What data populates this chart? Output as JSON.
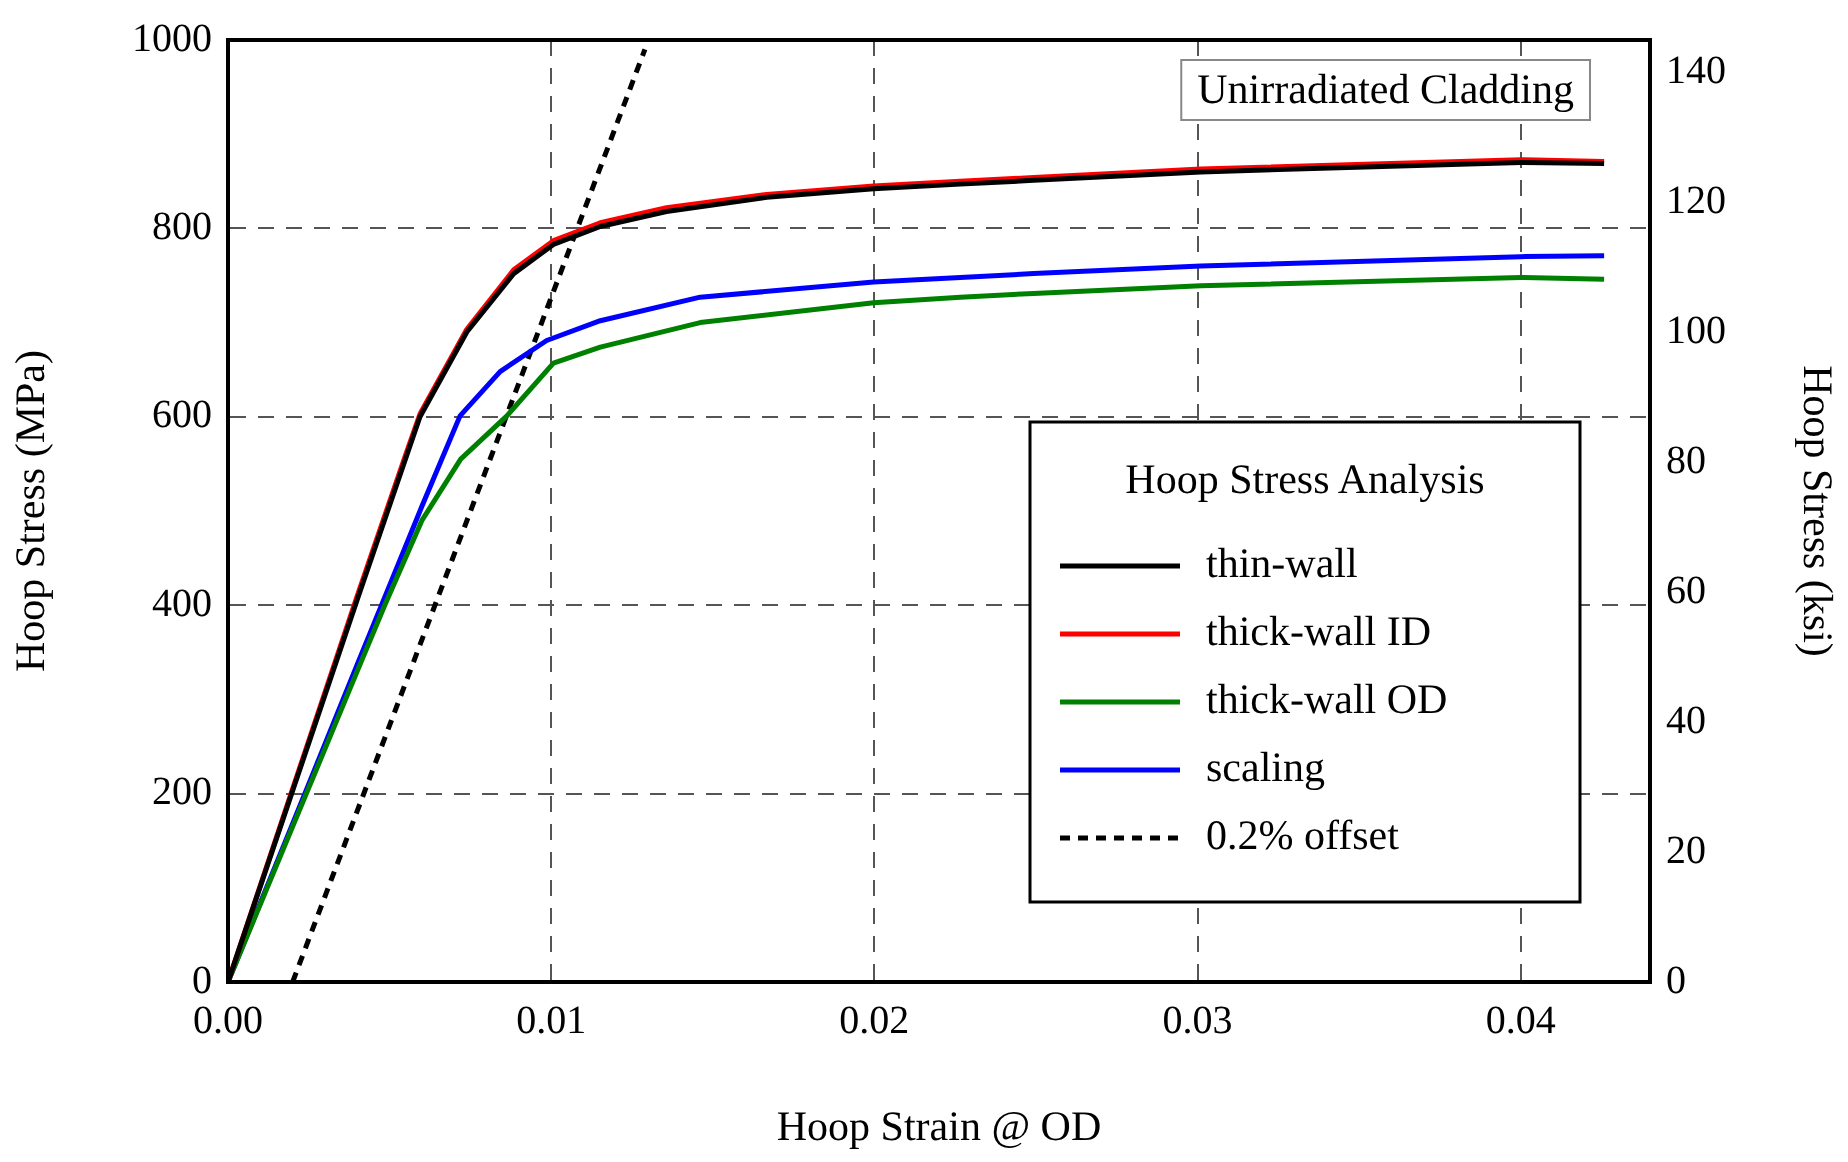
{
  "chart_data": {
    "type": "line",
    "title": "Unirradiated Cladding",
    "xlabel": "Hoop Strain @ OD",
    "ylabel": "Hoop Stress (MPa)",
    "y2label": "Hoop Stress (ksi)",
    "legend_title": "Hoop Stress Analysis",
    "legend": "bottom right",
    "grid": true,
    "line_style": "solid",
    "marker": "none",
    "xlim": [
      0,
      0.044
    ],
    "xticks": [
      {
        "value": 0,
        "label": "0.00"
      },
      0.01,
      0.02,
      0.03,
      0.04
    ],
    "ylim": [
      0,
      1000
    ],
    "yticks": [
      0,
      200,
      400,
      600,
      800,
      1000
    ],
    "y2lim": [
      0,
      145.04
    ],
    "y2ticks": [
      0,
      20,
      40,
      60,
      80,
      100,
      120,
      140
    ],
    "series": [
      {
        "name": "thin-wall",
        "color": "#000000",
        "x": [
          0,
          0.002,
          0.004,
          0.0055,
          0.00594,
          0.00739,
          0.00884,
          0.01007,
          0.01152,
          0.01357,
          0.01667,
          0.01998,
          0.02266,
          0.02493,
          0.0301,
          0.04,
          0.04258
        ],
        "values": [
          0,
          203,
          406,
          556,
          600,
          690,
          752,
          783,
          802,
          818,
          833,
          842,
          847,
          851,
          860,
          870,
          869
        ]
      },
      {
        "name": "thick-wall ID",
        "color": "#ff0000",
        "x": [
          0,
          0.002,
          0.004,
          0.0055,
          0.00594,
          0.00739,
          0.00884,
          0.01007,
          0.01152,
          0.01357,
          0.01667,
          0.01998,
          0.02266,
          0.02493,
          0.0301,
          0.04,
          0.04258
        ],
        "values": [
          0,
          205,
          410,
          560,
          603,
          693,
          756,
          787,
          806,
          822,
          836,
          845,
          850,
          854,
          863,
          873,
          871
        ]
      },
      {
        "name": "thick-wall OD",
        "color": "#008000",
        "x": [
          0,
          0.002,
          0.004,
          0.00485,
          0.006,
          0.0072,
          0.00863,
          0.01007,
          0.01152,
          0.01461,
          0.01998,
          0.02266,
          0.02493,
          0.0301,
          0.04,
          0.04258
        ],
        "values": [
          0,
          165,
          330,
          400,
          490,
          555,
          601,
          657,
          674,
          700,
          721,
          727,
          731,
          739,
          748,
          746
        ]
      },
      {
        "name": "scaling",
        "color": "#0000ff",
        "x": [
          0,
          0.002,
          0.004,
          0.00475,
          0.006,
          0.00718,
          0.00842,
          0.00986,
          0.01152,
          0.01461,
          0.01998,
          0.02266,
          0.02493,
          0.0301,
          0.04,
          0.04258
        ],
        "values": [
          0,
          168,
          337,
          400,
          505,
          601,
          648,
          681,
          702,
          727,
          743,
          748,
          752,
          760,
          770,
          771
        ]
      },
      {
        "name": "0.2% offset",
        "color": "#000000",
        "line_style": "dashed",
        "x": [
          0.002,
          0.0129
        ],
        "values": [
          0,
          990
        ]
      }
    ]
  }
}
